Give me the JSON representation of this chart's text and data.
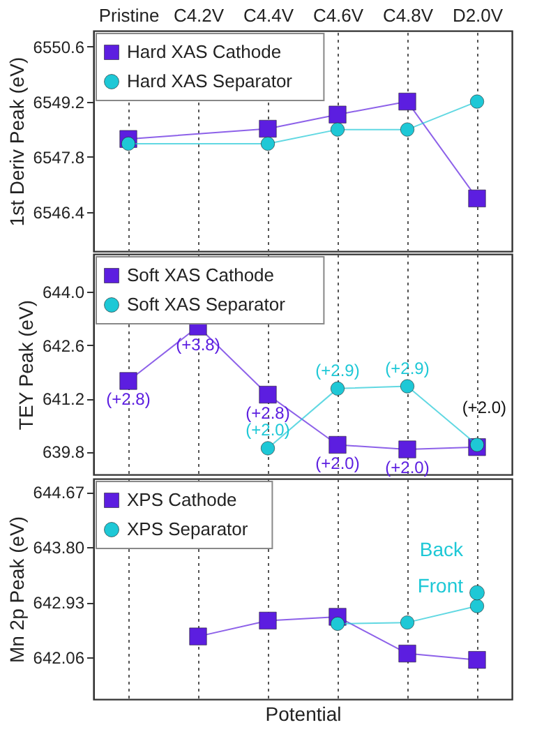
{
  "chart_data": [
    {
      "type": "line",
      "categories": [
        "Pristine",
        "C4.2V",
        "C4.4V",
        "C4.6V",
        "C4.8V",
        "D2.0V"
      ],
      "ylabel": "1st Deriv Peak (eV)",
      "ylim": [
        6545.4,
        6551.0
      ],
      "yticks": [
        6546.4,
        6547.8,
        6549.2,
        6550.6
      ],
      "grid": "x",
      "legend": "top left",
      "series": [
        {
          "name": "Hard XAS Cathode",
          "color": "#5c1ee0",
          "marker": "square",
          "values": [
            6548.25,
            null,
            6548.51,
            6548.87,
            6549.2,
            6546.74
          ]
        },
        {
          "name": "Hard XAS Separator",
          "color": "#1ec8d6",
          "marker": "circle",
          "values": [
            6548.13,
            null,
            6548.13,
            6548.49,
            6548.49,
            6549.2
          ]
        }
      ]
    },
    {
      "type": "line",
      "categories": [
        "Pristine",
        "C4.2V",
        "C4.4V",
        "C4.6V",
        "C4.8V",
        "D2.0V"
      ],
      "ylabel": "TEY Peak (eV)",
      "ylim": [
        639.2,
        645.0
      ],
      "yticks": [
        {
          "value": 639.8,
          "label": "639.8"
        },
        {
          "value": 641.2,
          "label": "641.2"
        },
        {
          "value": 642.6,
          "label": "642.6"
        },
        {
          "value": 644,
          "label": "644.0"
        }
      ],
      "grid": "x",
      "legend": "top left",
      "tick_labels": "y",
      "series": [
        {
          "name": "Soft XAS Cathode",
          "color": "#5c1ee0",
          "marker": "square",
          "values": [
            641.66,
            643.09,
            641.3,
            639.98,
            639.86,
            639.92
          ]
        },
        {
          "name": "Soft XAS Separator",
          "color": "#1ec8d6",
          "marker": "circle",
          "values": [
            null,
            null,
            639.89,
            641.46,
            641.52,
            639.98
          ]
        }
      ],
      "annotations": [
        {
          "text": "(+2.8)",
          "x": "Pristine",
          "y": 641.66
        },
        {
          "text": "(+3.8)",
          "x": "C4.2V",
          "y": 643.09
        },
        {
          "text": "(+2.8)",
          "x": "C4.4V",
          "y": 641.3
        },
        {
          "text": "(+2.0)",
          "x": "C4.6V",
          "y": 639.98
        },
        {
          "text": "(+2.0)",
          "x": "C4.8V",
          "y": 639.86
        },
        {
          "text": "(+2.0)",
          "x": "C4.4V",
          "y": 639.89
        },
        {
          "text": "(+2.9)",
          "x": "C4.6V",
          "y": 641.46
        },
        {
          "text": "(+2.9)",
          "x": "C4.8V",
          "y": 641.52
        },
        "(+2.0)"
      ]
    },
    {
      "type": "line",
      "categories": [
        "Pristine",
        "C4.2V",
        "C4.4V",
        "C4.6V",
        "C4.8V",
        "D2.0V"
      ],
      "xlabel": "Potential",
      "ylabel": "Mn 2p Peak (eV)",
      "ylim": [
        641.4,
        644.88
      ],
      "yticks": [
        642.06,
        {
          "value": 642.93,
          "label": "642.93"
        },
        {
          "value": 643.8,
          "label": "643.80"
        },
        644.67
      ],
      "grid": "x",
      "legend": "top left",
      "tick_labels": "y",
      "series": [
        {
          "name": "XPS Cathode",
          "color": "#5c1ee0",
          "marker": "square",
          "values": [
            null,
            642.39,
            642.64,
            642.7,
            642.12,
            642.02
          ]
        },
        {
          "name": "XPS Separator",
          "color": "#1ec8d6",
          "marker": "circle",
          "values": [
            null,
            null,
            null,
            642.59,
            642.61,
            642.87
          ]
        },
        {
          "type": "scatter",
          "color": "#1ec8d6",
          "marker": "circle",
          "values": [
            null,
            null,
            null,
            null,
            null,
            643.08
          ]
        }
      ],
      "annotations": [
        {
          "text": "Front",
          "x": "D2.0V",
          "y": 642.87
        },
        {
          "text": "Back",
          "x": "D2.0V",
          "y": 643.08
        }
      ]
    }
  ]
}
